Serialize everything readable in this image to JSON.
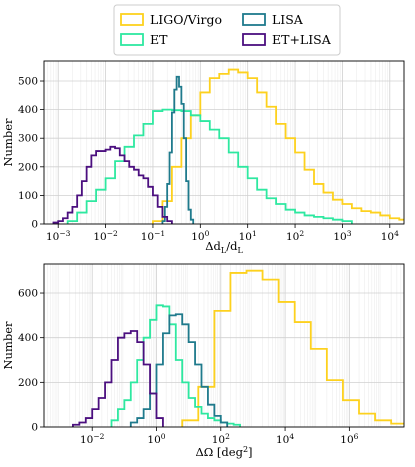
{
  "legend": {
    "placement": "top-center, outside",
    "entries": [
      {
        "label": "LIGO/Virgo",
        "color": "#FDD11E"
      },
      {
        "label": "LISA",
        "color": "#1F7A8C"
      },
      {
        "label": "ET",
        "color": "#2EE8A0"
      },
      {
        "label": "ET+LISA",
        "color": "#4B0F7F"
      }
    ]
  },
  "colors": {
    "ligo": "#FDD11E",
    "lisa": "#1F7A8C",
    "et": "#2EE8A0",
    "etlisa": "#4B0F7F",
    "grid": "#d0d0d0"
  },
  "chart_data": [
    {
      "type": "histogram",
      "xlabel": "Δd_L/d_L",
      "ylabel": "Number",
      "xscale": "log",
      "xlim_log10": [
        -3.3,
        4.3
      ],
      "ylim": [
        0,
        570
      ],
      "grid": true,
      "xticks": [
        {
          "exp": -3,
          "label": "10^-3"
        },
        {
          "exp": -2,
          "label": "10^-2"
        },
        {
          "exp": -1,
          "label": "10^-1"
        },
        {
          "exp": 0,
          "label": "10^0"
        },
        {
          "exp": 1,
          "label": "10^1"
        },
        {
          "exp": 2,
          "label": "10^2"
        },
        {
          "exp": 3,
          "label": "10^3"
        },
        {
          "exp": 4,
          "label": "10^4"
        }
      ],
      "yticks": [
        0,
        100,
        200,
        300,
        400,
        500
      ],
      "series": [
        {
          "key": "ligo",
          "name": "LIGO/Virgo",
          "bin_start_log10": -1.0,
          "bin_width_log10": 0.2,
          "counts": [
            10,
            80,
            200,
            300,
            380,
            460,
            510,
            525,
            540,
            530,
            510,
            460,
            410,
            350,
            300,
            250,
            190,
            140,
            110,
            85,
            70,
            55,
            45,
            40,
            30,
            20,
            15,
            10
          ]
        },
        {
          "key": "et",
          "name": "ET",
          "bin_start_log10": -2.8,
          "bin_width_log10": 0.2,
          "counts": [
            10,
            40,
            80,
            120,
            160,
            220,
            270,
            310,
            350,
            395,
            400,
            398,
            395,
            380,
            360,
            330,
            300,
            250,
            200,
            160,
            120,
            90,
            70,
            50,
            40,
            30,
            25,
            20,
            15,
            10
          ]
        },
        {
          "key": "lisa",
          "name": "LISA",
          "bin_start_log10": -0.8,
          "bin_width_log10": 0.05,
          "counts": [
            10,
            60,
            140,
            250,
            390,
            470,
            515,
            480,
            420,
            300,
            150,
            50,
            15
          ]
        },
        {
          "key": "etlisa",
          "name": "ET+LISA",
          "bin_start_log10": -3.1,
          "bin_width_log10": 0.1,
          "counts": [
            5,
            10,
            20,
            40,
            60,
            100,
            150,
            200,
            240,
            255,
            255,
            260,
            270,
            265,
            240,
            220,
            200,
            190,
            170,
            160,
            130,
            100,
            60,
            25,
            10
          ]
        }
      ]
    },
    {
      "type": "histogram",
      "xlabel": "ΔΩ [deg^2]",
      "ylabel": "Number",
      "xscale": "log",
      "xlim_log10": [
        -3.5,
        7.7
      ],
      "ylim": [
        0,
        730
      ],
      "grid": true,
      "xticks": [
        {
          "exp": -2,
          "label": "10^-2"
        },
        {
          "exp": 0,
          "label": "10^0"
        },
        {
          "exp": 2,
          "label": "10^2"
        },
        {
          "exp": 4,
          "label": "10^4"
        },
        {
          "exp": 6,
          "label": "10^6"
        }
      ],
      "yticks": [
        0,
        200,
        400,
        600
      ],
      "series": [
        {
          "key": "ligo",
          "name": "LIGO/Virgo",
          "bin_start_log10": 0.8,
          "bin_width_log10": 0.5,
          "counts": [
            30,
            180,
            520,
            690,
            700,
            660,
            560,
            470,
            350,
            210,
            120,
            60,
            30,
            15,
            5
          ]
        },
        {
          "key": "et",
          "name": "ET",
          "bin_start_log10": -1.4,
          "bin_width_log10": 0.2,
          "counts": [
            30,
            80,
            120,
            200,
            300,
            400,
            480,
            545,
            540,
            460,
            300,
            200,
            130,
            90,
            60,
            40,
            30,
            20,
            15,
            10
          ]
        },
        {
          "key": "lisa",
          "name": "LISA",
          "bin_start_log10": -0.8,
          "bin_width_log10": 0.2,
          "counts": [
            20,
            40,
            80,
            150,
            280,
            420,
            500,
            505,
            460,
            380,
            280,
            180,
            100,
            50,
            20
          ]
        },
        {
          "key": "etlisa",
          "name": "ET+LISA",
          "bin_start_log10": -2.6,
          "bin_width_log10": 0.2,
          "counts": [
            10,
            20,
            40,
            80,
            130,
            200,
            300,
            400,
            420,
            430,
            380,
            280,
            150,
            40
          ]
        }
      ]
    }
  ]
}
